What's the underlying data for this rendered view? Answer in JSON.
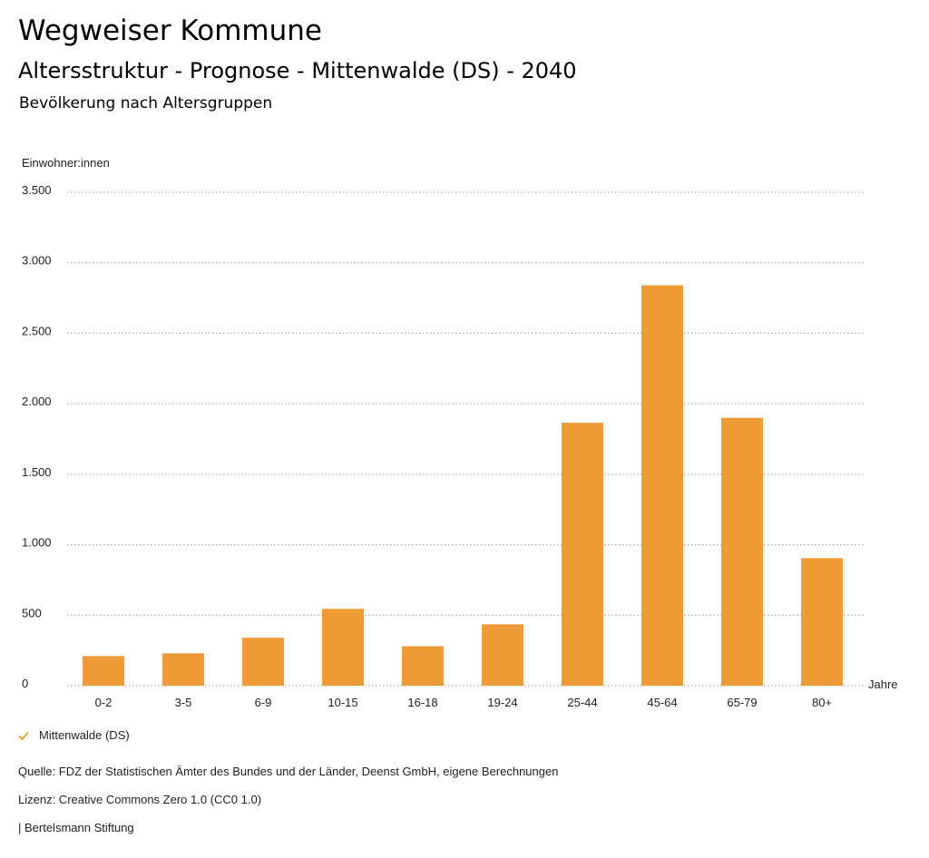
{
  "header": {
    "title": "Wegweiser Kommune",
    "subtitle": "Altersstruktur - Prognose - Mittenwalde (DS) - 2040",
    "subsubtitle": "Bevölkerung nach Altersgruppen"
  },
  "chart_data": {
    "type": "bar",
    "ylabel": "Einwohner:innen",
    "xlabel": "Jahre",
    "categories": [
      "0-2",
      "3-5",
      "6-9",
      "10-15",
      "16-18",
      "19-24",
      "25-44",
      "45-64",
      "65-79",
      "80+"
    ],
    "series": [
      {
        "name": "Mittenwalde (DS)",
        "values": [
          210,
          230,
          340,
          545,
          280,
          435,
          1865,
          2840,
          1900,
          905
        ],
        "color": "#ee9a37"
      }
    ],
    "ylim": [
      0,
      3500
    ],
    "yticks": [
      0,
      500,
      1000,
      1500,
      2000,
      2500,
      3000,
      3500
    ],
    "ytick_labels": [
      "0",
      "500",
      "1.000",
      "1.500",
      "2.000",
      "2.500",
      "3.000",
      "3.500"
    ],
    "grid": true,
    "legend_position": "bottom-left"
  },
  "legend": {
    "label": "Mittenwalde (DS)",
    "icon": "checkmark-icon",
    "color": "#ee9a37"
  },
  "footer": {
    "source": "Quelle: FDZ der Statistischen Ämter des Bundes und der Länder, Deenst GmbH, eigene Berechnungen",
    "license": "Lizenz: Creative Commons Zero 1.0 (CC0 1.0)",
    "publisher": "| Bertelsmann Stiftung"
  }
}
